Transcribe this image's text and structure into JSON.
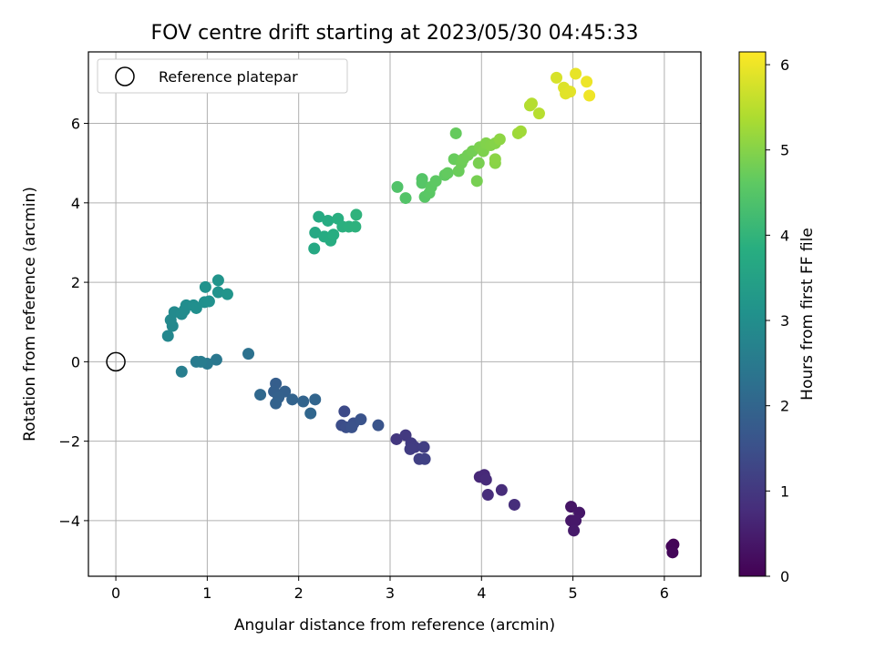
{
  "chart_data": {
    "type": "scatter",
    "title": "FOV centre drift starting at 2023/05/30 04:45:33",
    "xlabel": "Angular distance from reference (arcmin)",
    "ylabel": "Rotation from reference (arcmin)",
    "colorbar_label": "Hours from first FF file",
    "xlim": [
      -0.3,
      6.4
    ],
    "ylim": [
      -5.4,
      7.8
    ],
    "xticks": [
      0,
      1,
      2,
      3,
      4,
      5,
      6
    ],
    "yticks": [
      -4,
      -2,
      0,
      2,
      4,
      6
    ],
    "colorbar_range": [
      0,
      6.15
    ],
    "colorbar_ticks": [
      0,
      1,
      2,
      3,
      4,
      5,
      6
    ],
    "grid": true,
    "colormap": "viridis",
    "legend": {
      "placement": "top-left",
      "entries": [
        {
          "label": "Reference platepar",
          "marker": "hollow-circle"
        }
      ]
    },
    "reference_point": {
      "x": 0,
      "y": 0
    },
    "points": [
      {
        "x": 6.1,
        "y": -4.6,
        "t": 0.05
      },
      {
        "x": 6.08,
        "y": -4.65,
        "t": 0.08
      },
      {
        "x": 6.09,
        "y": -4.8,
        "t": 0.1
      },
      {
        "x": 4.98,
        "y": -3.65,
        "t": 0.35
      },
      {
        "x": 5.07,
        "y": -3.8,
        "t": 0.38
      },
      {
        "x": 4.98,
        "y": -4.0,
        "t": 0.4
      },
      {
        "x": 5.03,
        "y": -4.0,
        "t": 0.42
      },
      {
        "x": 5.01,
        "y": -4.25,
        "t": 0.45
      },
      {
        "x": 3.98,
        "y": -2.9,
        "t": 0.7
      },
      {
        "x": 4.03,
        "y": -2.85,
        "t": 0.72
      },
      {
        "x": 4.05,
        "y": -2.97,
        "t": 0.75
      },
      {
        "x": 4.22,
        "y": -3.23,
        "t": 0.78
      },
      {
        "x": 4.07,
        "y": -3.35,
        "t": 0.8
      },
      {
        "x": 4.36,
        "y": -3.6,
        "t": 0.82
      },
      {
        "x": 3.07,
        "y": -1.95,
        "t": 1.0
      },
      {
        "x": 3.17,
        "y": -1.85,
        "t": 1.05
      },
      {
        "x": 3.23,
        "y": -2.05,
        "t": 1.08
      },
      {
        "x": 3.27,
        "y": -2.15,
        "t": 1.1
      },
      {
        "x": 3.22,
        "y": -2.2,
        "t": 1.12
      },
      {
        "x": 3.37,
        "y": -2.15,
        "t": 1.15
      },
      {
        "x": 3.32,
        "y": -2.45,
        "t": 1.18
      },
      {
        "x": 3.38,
        "y": -2.45,
        "t": 1.2
      },
      {
        "x": 2.5,
        "y": -1.25,
        "t": 1.4
      },
      {
        "x": 2.47,
        "y": -1.6,
        "t": 1.45
      },
      {
        "x": 2.52,
        "y": -1.65,
        "t": 1.5
      },
      {
        "x": 2.6,
        "y": -1.55,
        "t": 1.52
      },
      {
        "x": 2.58,
        "y": -1.65,
        "t": 1.55
      },
      {
        "x": 2.68,
        "y": -1.45,
        "t": 1.58
      },
      {
        "x": 2.87,
        "y": -1.6,
        "t": 1.6
      },
      {
        "x": 1.75,
        "y": -0.55,
        "t": 1.85
      },
      {
        "x": 1.73,
        "y": -0.75,
        "t": 1.88
      },
      {
        "x": 1.85,
        "y": -0.75,
        "t": 1.9
      },
      {
        "x": 1.78,
        "y": -0.9,
        "t": 1.92
      },
      {
        "x": 1.75,
        "y": -1.05,
        "t": 1.95
      },
      {
        "x": 1.93,
        "y": -0.95,
        "t": 1.98
      },
      {
        "x": 2.05,
        "y": -1.0,
        "t": 2.0
      },
      {
        "x": 2.18,
        "y": -0.95,
        "t": 2.02
      },
      {
        "x": 2.13,
        "y": -1.3,
        "t": 2.05
      },
      {
        "x": 1.58,
        "y": -0.83,
        "t": 2.1
      },
      {
        "x": 1.45,
        "y": 0.2,
        "t": 2.3
      },
      {
        "x": 1.1,
        "y": 0.05,
        "t": 2.45
      },
      {
        "x": 1.0,
        "y": -0.05,
        "t": 2.5
      },
      {
        "x": 0.88,
        "y": 0.0,
        "t": 2.55
      },
      {
        "x": 0.93,
        "y": 0.0,
        "t": 2.58
      },
      {
        "x": 0.72,
        "y": -0.25,
        "t": 2.62
      },
      {
        "x": 0.57,
        "y": 0.65,
        "t": 2.85
      },
      {
        "x": 0.62,
        "y": 0.9,
        "t": 2.88
      },
      {
        "x": 0.6,
        "y": 1.05,
        "t": 2.9
      },
      {
        "x": 0.64,
        "y": 1.25,
        "t": 2.92
      },
      {
        "x": 0.72,
        "y": 1.2,
        "t": 2.95
      },
      {
        "x": 0.75,
        "y": 1.3,
        "t": 2.98
      },
      {
        "x": 0.77,
        "y": 1.42,
        "t": 3.0
      },
      {
        "x": 0.85,
        "y": 1.42,
        "t": 3.02
      },
      {
        "x": 0.88,
        "y": 1.35,
        "t": 3.05
      },
      {
        "x": 0.97,
        "y": 1.5,
        "t": 3.08
      },
      {
        "x": 1.02,
        "y": 1.52,
        "t": 3.1
      },
      {
        "x": 0.98,
        "y": 1.88,
        "t": 3.12
      },
      {
        "x": 1.12,
        "y": 1.75,
        "t": 3.15
      },
      {
        "x": 1.12,
        "y": 2.05,
        "t": 3.18
      },
      {
        "x": 1.22,
        "y": 1.7,
        "t": 3.2
      },
      {
        "x": 2.17,
        "y": 2.85,
        "t": 3.7
      },
      {
        "x": 2.18,
        "y": 3.25,
        "t": 3.72
      },
      {
        "x": 2.22,
        "y": 3.65,
        "t": 3.75
      },
      {
        "x": 2.32,
        "y": 3.55,
        "t": 3.78
      },
      {
        "x": 2.28,
        "y": 3.15,
        "t": 3.8
      },
      {
        "x": 2.35,
        "y": 3.05,
        "t": 3.82
      },
      {
        "x": 2.38,
        "y": 3.2,
        "t": 3.85
      },
      {
        "x": 2.43,
        "y": 3.6,
        "t": 3.88
      },
      {
        "x": 2.48,
        "y": 3.4,
        "t": 3.9
      },
      {
        "x": 2.55,
        "y": 3.4,
        "t": 3.92
      },
      {
        "x": 2.62,
        "y": 3.4,
        "t": 3.95
      },
      {
        "x": 2.63,
        "y": 3.7,
        "t": 3.98
      },
      {
        "x": 3.08,
        "y": 4.4,
        "t": 4.45
      },
      {
        "x": 3.17,
        "y": 4.12,
        "t": 4.48
      },
      {
        "x": 3.35,
        "y": 4.6,
        "t": 4.5
      },
      {
        "x": 3.35,
        "y": 4.5,
        "t": 4.52
      },
      {
        "x": 3.38,
        "y": 4.15,
        "t": 4.55
      },
      {
        "x": 3.43,
        "y": 4.25,
        "t": 4.58
      },
      {
        "x": 3.45,
        "y": 4.4,
        "t": 4.6
      },
      {
        "x": 3.5,
        "y": 4.55,
        "t": 4.62
      },
      {
        "x": 3.6,
        "y": 4.7,
        "t": 4.65
      },
      {
        "x": 3.63,
        "y": 4.75,
        "t": 4.68
      },
      {
        "x": 3.72,
        "y": 5.75,
        "t": 4.7
      },
      {
        "x": 3.7,
        "y": 5.1,
        "t": 4.72
      },
      {
        "x": 3.75,
        "y": 4.8,
        "t": 4.75
      },
      {
        "x": 3.78,
        "y": 5.0,
        "t": 4.78
      },
      {
        "x": 3.8,
        "y": 5.1,
        "t": 4.8
      },
      {
        "x": 3.85,
        "y": 5.2,
        "t": 4.82
      },
      {
        "x": 3.9,
        "y": 5.3,
        "t": 4.85
      },
      {
        "x": 3.95,
        "y": 4.55,
        "t": 4.88
      },
      {
        "x": 3.97,
        "y": 5.0,
        "t": 4.9
      },
      {
        "x": 3.98,
        "y": 5.4,
        "t": 4.92
      },
      {
        "x": 4.02,
        "y": 5.3,
        "t": 4.95
      },
      {
        "x": 4.05,
        "y": 5.5,
        "t": 4.98
      },
      {
        "x": 4.1,
        "y": 5.45,
        "t": 5.0
      },
      {
        "x": 4.15,
        "y": 5.5,
        "t": 5.02
      },
      {
        "x": 4.15,
        "y": 5.0,
        "t": 5.05
      },
      {
        "x": 4.15,
        "y": 5.1,
        "t": 5.08
      },
      {
        "x": 4.2,
        "y": 5.6,
        "t": 5.1
      },
      {
        "x": 4.4,
        "y": 5.75,
        "t": 5.25
      },
      {
        "x": 4.43,
        "y": 5.8,
        "t": 5.28
      },
      {
        "x": 4.53,
        "y": 6.45,
        "t": 5.45
      },
      {
        "x": 4.55,
        "y": 6.5,
        "t": 5.48
      },
      {
        "x": 4.63,
        "y": 6.25,
        "t": 5.5
      },
      {
        "x": 4.82,
        "y": 7.15,
        "t": 5.8
      },
      {
        "x": 4.9,
        "y": 6.9,
        "t": 5.85
      },
      {
        "x": 4.92,
        "y": 6.75,
        "t": 5.88
      },
      {
        "x": 4.97,
        "y": 6.8,
        "t": 5.9
      },
      {
        "x": 5.03,
        "y": 7.25,
        "t": 5.95
      },
      {
        "x": 5.15,
        "y": 7.05,
        "t": 6.0
      },
      {
        "x": 5.18,
        "y": 6.7,
        "t": 6.02
      }
    ]
  }
}
